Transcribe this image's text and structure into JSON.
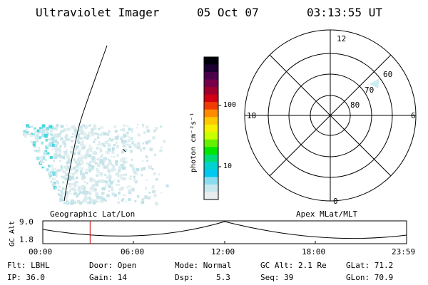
{
  "header": {
    "instrument": "Ultraviolet Imager",
    "date": "05 Oct 07",
    "time": "03:13:55 UT"
  },
  "colorbar": {
    "label": "photon cm⁻²s⁻¹",
    "ticks": [
      "100",
      "10"
    ],
    "colors": [
      "#00000a",
      "#1c0032",
      "#4b004b",
      "#78004b",
      "#a0002d",
      "#d20014",
      "#f03c00",
      "#ff8c00",
      "#ffc800",
      "#f5f000",
      "#c8ff00",
      "#64f000",
      "#00e600",
      "#00dc78",
      "#00d2d2",
      "#00c8f0",
      "#8cdcf0",
      "#c8e8ef",
      "#e8eef0"
    ]
  },
  "polar": {
    "mlt_labels": {
      "top": "12",
      "right": "6",
      "bottom": "0",
      "left": "18"
    },
    "lat_labels": [
      "60",
      "70",
      "80"
    ]
  },
  "timeline": {
    "left_caption": "Geographic Lat/Lon",
    "right_caption": "Apex MLat/MLT",
    "ylabel": "GC Alt",
    "ytick_top": "9.0",
    "ytick_bottom": "1.8",
    "xticks": [
      "00:00",
      "06:00",
      "12:00",
      "18:00",
      "23:59"
    ],
    "current_time_fraction": 0.13,
    "marker_color": "#cc0000"
  },
  "info": {
    "flt": "Flt: LBHL",
    "ip": "IP: 36.0",
    "door": "Door: Open",
    "gain": "Gain: 14",
    "mode": "Mode: Normal",
    "dsp_label": "Dsp:",
    "dsp_value": "5.3",
    "gcalt": "GC Alt: 2.1 Re",
    "seq": "Seq: 39",
    "glat": "GLat: 71.2",
    "glon": "GLon: 70.9"
  }
}
